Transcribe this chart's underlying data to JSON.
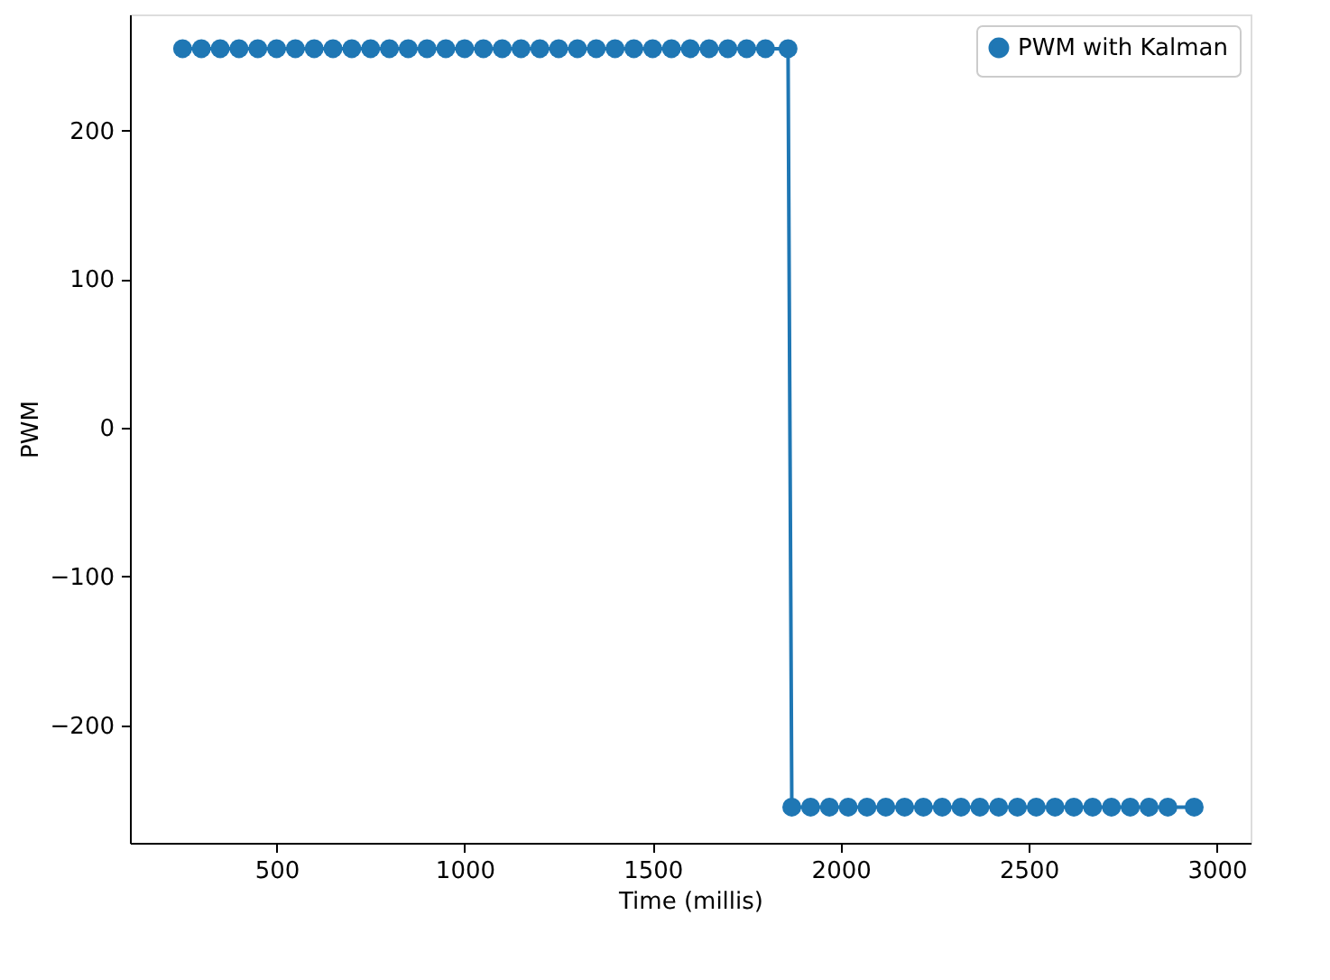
{
  "chart_data": {
    "type": "line",
    "xlabel": "Time (millis)",
    "ylabel": "PWM",
    "x": [
      250,
      300,
      350,
      400,
      450,
      500,
      550,
      600,
      650,
      700,
      750,
      800,
      850,
      900,
      950,
      1000,
      1050,
      1100,
      1150,
      1200,
      1250,
      1300,
      1350,
      1400,
      1450,
      1500,
      1550,
      1600,
      1650,
      1700,
      1750,
      1800,
      1860,
      1870,
      1920,
      1970,
      2020,
      2070,
      2120,
      2170,
      2220,
      2270,
      2320,
      2370,
      2420,
      2470,
      2520,
      2570,
      2620,
      2670,
      2720,
      2770,
      2820,
      2870,
      2940
    ],
    "series": [
      {
        "name": "PWM with Kalman",
        "color": "#1f77b4",
        "values": [
          255,
          255,
          255,
          255,
          255,
          255,
          255,
          255,
          255,
          255,
          255,
          255,
          255,
          255,
          255,
          255,
          255,
          255,
          255,
          255,
          255,
          255,
          255,
          255,
          255,
          255,
          255,
          255,
          255,
          255,
          255,
          255,
          255,
          -255,
          -255,
          -255,
          -255,
          -255,
          -255,
          -255,
          -255,
          -255,
          -255,
          -255,
          -255,
          -255,
          -255,
          -255,
          -255,
          -255,
          -255,
          -255,
          -255,
          -255,
          -255
        ]
      }
    ],
    "xlim": [
      110,
      3090
    ],
    "ylim": [
      -279,
      278
    ],
    "xticks": [
      500,
      1000,
      1500,
      2000,
      2500,
      3000
    ],
    "yticks": [
      {
        "value": -200,
        "label": "−200"
      },
      {
        "value": -100,
        "label": "−100"
      },
      0,
      100,
      200
    ],
    "marker": "circle",
    "line_style": "solid",
    "legend": "top right",
    "grid": false
  }
}
